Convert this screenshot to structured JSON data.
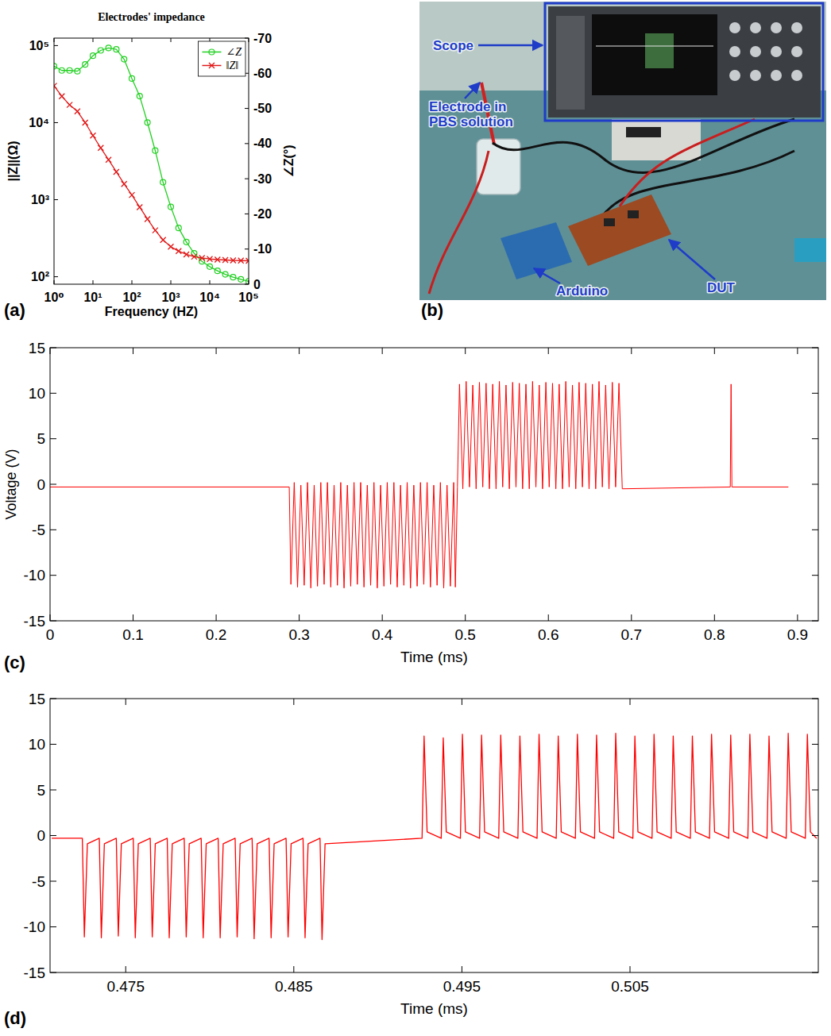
{
  "chart_data": [
    {
      "type": "line",
      "panel_label": "(a)",
      "title": "Electrodes' impedance",
      "xlabel": "Frequency (HZ)",
      "ylabel": "||Z||(Ω)",
      "y2label": "∠Z(°)",
      "log": true,
      "grid": false,
      "legend": "upper right",
      "x": [
        1,
        1.585,
        2.512,
        3.981,
        6.31,
        10,
        15.85,
        25.12,
        39.81,
        63.1,
        100,
        158.5,
        251.2,
        398.1,
        631,
        1000,
        1585,
        2512,
        3981,
        6310,
        10000,
        15850,
        25120,
        39810,
        63100,
        100000
      ],
      "series": [
        {
          "name": "∠Z",
          "color": "#22d022",
          "marker": "circle",
          "axis": "y2",
          "values": [
            -62,
            -60.8,
            -60.8,
            -60.6,
            -62.5,
            -65,
            -66.5,
            -67.2,
            -66.8,
            -64,
            -58.5,
            -53.5,
            -46,
            -38,
            -29,
            -22,
            -16,
            -12,
            -8.8,
            -6.5,
            -5,
            -3.8,
            -2.8,
            -2,
            -1.4,
            -0.8
          ]
        },
        {
          "name": "‖Z‖",
          "color": "#e01818",
          "marker": "x",
          "values": [
            30000,
            22000,
            17000,
            14000,
            10000,
            6800,
            4700,
            3300,
            2300,
            1600,
            1150,
            800,
            560,
            400,
            300,
            245,
            215,
            195,
            182,
            175,
            170,
            167,
            165,
            163,
            162,
            161
          ]
        }
      ],
      "xlim": [
        1,
        100000
      ],
      "xticks": [
        {
          "value": 1,
          "label": "10⁰"
        },
        {
          "value": 10,
          "label": "10¹"
        },
        {
          "value": 100,
          "label": "10²"
        },
        {
          "value": 1000,
          "label": "10³"
        },
        {
          "value": 10000,
          "label": "10⁴"
        },
        {
          "value": 100000,
          "label": "10⁵"
        }
      ],
      "ylim": [
        80,
        125000
      ],
      "yticks": [
        {
          "value": 100,
          "label": "10²"
        },
        {
          "value": 1000,
          "label": "10³"
        },
        {
          "value": 10000,
          "label": "10⁴"
        },
        {
          "value": 100000,
          "label": "10⁵"
        }
      ],
      "y2lim": [
        0,
        -70
      ],
      "y2ticks": [
        -70,
        -60,
        -50,
        -40,
        -30,
        -20,
        -10,
        0
      ]
    },
    {
      "type": "line",
      "panel_label": "(c)",
      "xlabel": "Time (ms)",
      "ylabel": "Voltage (V)",
      "grid": false,
      "color": "#ff0000",
      "x": [
        0,
        0.288,
        0.29,
        0.294,
        0.298,
        0.302,
        0.306,
        0.31,
        0.314,
        0.318,
        0.322,
        0.326,
        0.33,
        0.334,
        0.338,
        0.342,
        0.346,
        0.35,
        0.354,
        0.358,
        0.362,
        0.366,
        0.37,
        0.374,
        0.378,
        0.382,
        0.386,
        0.39,
        0.394,
        0.398,
        0.402,
        0.406,
        0.41,
        0.414,
        0.418,
        0.422,
        0.426,
        0.43,
        0.434,
        0.438,
        0.442,
        0.446,
        0.45,
        0.454,
        0.458,
        0.462,
        0.466,
        0.47,
        0.474,
        0.478,
        0.482,
        0.486,
        0.488,
        0.4905,
        0.493,
        0.497,
        0.501,
        0.505,
        0.509,
        0.513,
        0.517,
        0.521,
        0.525,
        0.529,
        0.533,
        0.537,
        0.541,
        0.545,
        0.549,
        0.553,
        0.557,
        0.561,
        0.565,
        0.569,
        0.573,
        0.577,
        0.581,
        0.585,
        0.589,
        0.593,
        0.597,
        0.601,
        0.605,
        0.609,
        0.613,
        0.617,
        0.621,
        0.625,
        0.629,
        0.633,
        0.637,
        0.641,
        0.645,
        0.649,
        0.653,
        0.657,
        0.661,
        0.665,
        0.669,
        0.673,
        0.677,
        0.681,
        0.685,
        0.689,
        0.819,
        0.82,
        0.821,
        0.889
      ],
      "values": [
        -0.3,
        -0.3,
        -11,
        0.2,
        -11.3,
        -0.1,
        -11.1,
        0.2,
        -11.4,
        -0.1,
        -11.2,
        0.2,
        -11,
        0.2,
        -11.3,
        -0.1,
        -11.1,
        0.2,
        -11.4,
        -0.1,
        -11.2,
        0.2,
        -11,
        0.2,
        -11.3,
        -0.1,
        -11.1,
        0.2,
        -11.4,
        -0.1,
        -11.2,
        0.2,
        -11,
        0.2,
        -11.3,
        -0.1,
        -11.1,
        0.2,
        -11.4,
        -0.1,
        -11.2,
        0.2,
        -11,
        0.2,
        -11.3,
        -0.1,
        -11.1,
        0.2,
        -11.4,
        -0.1,
        -11.2,
        0.2,
        -11.3,
        -0.3,
        11,
        -0.5,
        11.3,
        -0.3,
        10.9,
        -0.5,
        11.2,
        -0.3,
        11.1,
        -0.5,
        11,
        -0.5,
        11.3,
        -0.3,
        10.9,
        -0.5,
        11.2,
        -0.3,
        11.1,
        -0.5,
        11,
        -0.5,
        11.3,
        -0.3,
        10.9,
        -0.5,
        11.2,
        -0.3,
        11.1,
        -0.5,
        11,
        -0.5,
        11.3,
        -0.3,
        10.9,
        -0.5,
        11.2,
        -0.3,
        11.1,
        -0.5,
        11,
        -0.5,
        11.3,
        -0.3,
        10.9,
        -0.5,
        11.2,
        -0.3,
        11.1,
        -0.5,
        -0.3,
        11,
        -0.3,
        -0.3
      ],
      "xlim": [
        0,
        0.925
      ],
      "xticks": [
        0,
        0.1,
        0.2,
        0.3,
        0.4,
        0.5,
        0.6,
        0.7,
        0.8,
        0.9
      ],
      "ylim": [
        -15,
        15
      ],
      "yticks": [
        -15,
        -10,
        -5,
        0,
        5,
        10,
        15
      ]
    },
    {
      "type": "line",
      "panel_label": "(d)",
      "xlabel": "Time (ms)",
      "grid": false,
      "color": "#ff0000",
      "x": [
        0.4706,
        0.47242,
        0.47254,
        0.47272,
        0.47343,
        0.47355,
        0.47373,
        0.47444,
        0.47456,
        0.47474,
        0.47545,
        0.47557,
        0.47575,
        0.47646,
        0.47658,
        0.47676,
        0.47747,
        0.47759,
        0.47777,
        0.47848,
        0.4786,
        0.47878,
        0.47949,
        0.47961,
        0.47979,
        0.4805,
        0.48062,
        0.4808,
        0.48151,
        0.48163,
        0.48181,
        0.48252,
        0.48264,
        0.48282,
        0.48353,
        0.48365,
        0.48383,
        0.48454,
        0.48466,
        0.48484,
        0.48555,
        0.48567,
        0.48585,
        0.48656,
        0.48668,
        0.48686,
        0.49263,
        0.49275,
        0.49293,
        0.49377,
        0.49389,
        0.49407,
        0.49491,
        0.49503,
        0.49521,
        0.49605,
        0.49617,
        0.49635,
        0.49719,
        0.49731,
        0.49749,
        0.49833,
        0.49845,
        0.49863,
        0.49947,
        0.49959,
        0.49977,
        0.50061,
        0.50073,
        0.50091,
        0.50175,
        0.50187,
        0.50205,
        0.50289,
        0.50301,
        0.50319,
        0.50403,
        0.50415,
        0.50433,
        0.50517,
        0.50529,
        0.50547,
        0.50631,
        0.50643,
        0.50661,
        0.50745,
        0.50757,
        0.50775,
        0.50859,
        0.50871,
        0.50889,
        0.50973,
        0.50985,
        0.51003,
        0.51087,
        0.51099,
        0.51117,
        0.51201,
        0.51213,
        0.51231,
        0.51315,
        0.51327,
        0.51345,
        0.51429,
        0.51441,
        0.51459,
        0.51543,
        0.51555,
        0.51573,
        0.5161
      ],
      "values": [
        -0.3,
        -0.3,
        -11.1,
        -0.9,
        -0.3,
        -11.2,
        -0.9,
        -0.3,
        -11,
        -0.9,
        -0.3,
        -11.2,
        -0.9,
        -0.3,
        -11.1,
        -0.9,
        -0.3,
        -11.2,
        -0.9,
        -0.3,
        -11.1,
        -0.9,
        -0.3,
        -11.2,
        -0.9,
        -0.3,
        -11.2,
        -0.9,
        -0.3,
        -11.1,
        -0.9,
        -0.3,
        -11.3,
        -0.9,
        -0.3,
        -11.2,
        -0.9,
        -0.3,
        -11.1,
        -0.9,
        -0.3,
        -11.2,
        -0.9,
        -0.3,
        -11.4,
        -0.9,
        -0.3,
        10.9,
        0.4,
        -0.3,
        10.7,
        0.4,
        -0.3,
        11.1,
        0.4,
        -0.3,
        11,
        0.4,
        -0.3,
        11,
        0.4,
        -0.3,
        10.9,
        0.4,
        -0.3,
        11.1,
        0.4,
        -0.3,
        10.9,
        0.4,
        -0.3,
        11.1,
        0.4,
        -0.3,
        11,
        0.4,
        -0.3,
        11.2,
        0.4,
        -0.3,
        10.9,
        0.4,
        -0.3,
        11.1,
        0.4,
        -0.3,
        10.9,
        0.4,
        -0.3,
        10.9,
        0.4,
        -0.3,
        11.1,
        0.4,
        -0.3,
        11,
        0.4,
        -0.3,
        11.1,
        0.4,
        -0.3,
        10.9,
        0.4,
        -0.3,
        11.2,
        0.4,
        -0.3,
        11.1,
        0.4,
        -0.3
      ],
      "xlim": [
        0.4705,
        0.5162
      ],
      "xticks": [
        0.475,
        0.485,
        0.495,
        0.505
      ],
      "ylim": [
        -15,
        15
      ],
      "yticks": [
        -15,
        -10,
        -5,
        0,
        5,
        10,
        15
      ]
    }
  ],
  "photo": {
    "panel_label": "(b)",
    "annotations": [
      "Scope",
      "Electrode in PBS solution",
      "Arduino",
      "DUT"
    ]
  }
}
